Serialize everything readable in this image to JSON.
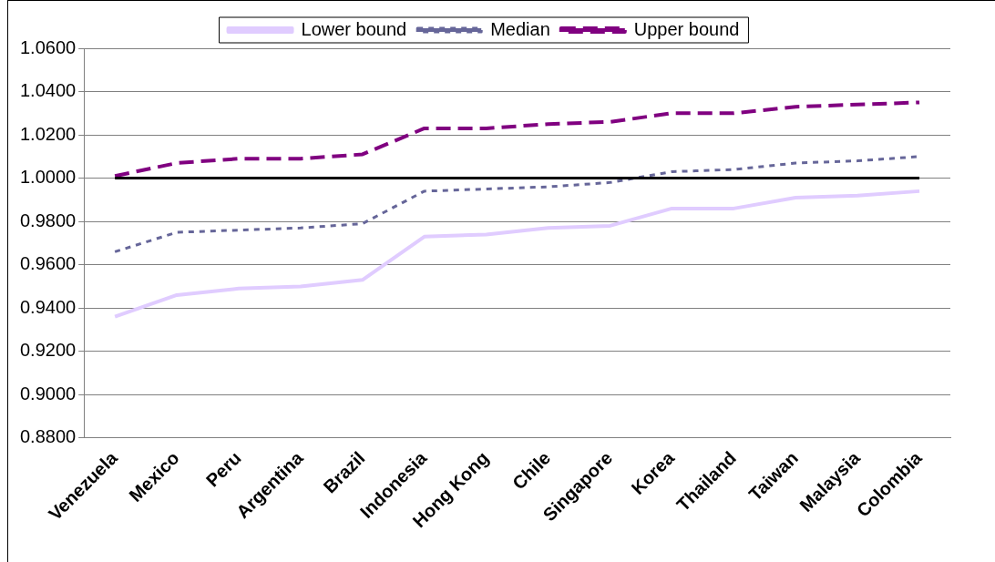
{
  "chart_data": {
    "type": "line",
    "categories": [
      "Venezuela",
      "Mexico",
      "Peru",
      "Argentina",
      "Brazil",
      "Indonesia",
      "Hong Kong",
      "Chile",
      "Singapore",
      "Korea",
      "Thailand",
      "Taiwan",
      "Malaysia",
      "Colombia"
    ],
    "series": [
      {
        "name": "Lower bound",
        "color": "#e0ccff",
        "line_style": "solid",
        "values": [
          0.936,
          0.946,
          0.949,
          0.95,
          0.953,
          0.973,
          0.974,
          0.977,
          0.978,
          0.986,
          0.986,
          0.991,
          0.992,
          0.994
        ]
      },
      {
        "name": "Median",
        "color": "#666699",
        "line_style": "dotted",
        "values": [
          0.966,
          0.975,
          0.976,
          0.977,
          0.979,
          0.994,
          0.995,
          0.996,
          0.998,
          1.003,
          1.004,
          1.007,
          1.008,
          1.01
        ]
      },
      {
        "name": "Upper bound",
        "color": "#800080",
        "line_style": "dashed",
        "values": [
          1.001,
          1.007,
          1.009,
          1.009,
          1.011,
          1.023,
          1.023,
          1.025,
          1.026,
          1.03,
          1.03,
          1.033,
          1.034,
          1.035
        ]
      }
    ],
    "ylim": [
      0.88,
      1.06
    ],
    "yticks": [
      {
        "value": 0.88,
        "label": "0.8800"
      },
      {
        "value": 0.9,
        "label": "0.9000"
      },
      {
        "value": 0.92,
        "label": "0.9200"
      },
      {
        "value": 0.94,
        "label": "0.9400"
      },
      {
        "value": 0.96,
        "label": "0.9600"
      },
      {
        "value": 0.98,
        "label": "0.9800"
      },
      {
        "value": 1.0,
        "label": "1.0000"
      },
      {
        "value": 1.02,
        "label": "1.0200"
      },
      {
        "value": 1.04,
        "label": "1.0400"
      },
      {
        "value": 1.06,
        "label": "1.0600"
      }
    ],
    "ref_lines": [
      {
        "axis": "y",
        "value": 1.0,
        "color": "#000000"
      }
    ],
    "grid": "y",
    "legend": "top",
    "marker": "none"
  }
}
